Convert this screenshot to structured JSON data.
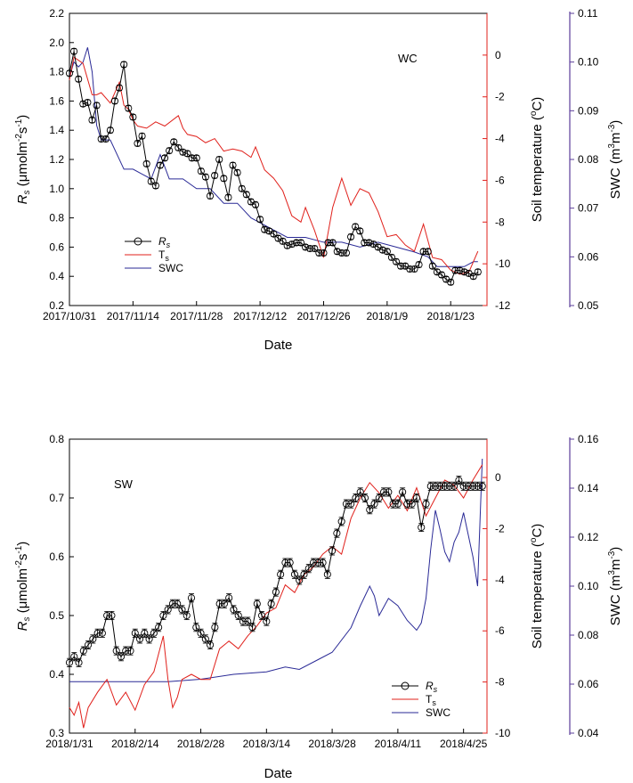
{
  "colors": {
    "rs": "#000000",
    "ts": "#e0201b",
    "swc": "#2a2a96",
    "right_axis": "#e0201b",
    "far_axis": "#5a3d99"
  },
  "chart_data": [
    {
      "type": "line",
      "panel_label": "WC",
      "xlabel": "Date",
      "ylabel_left": "Rs (μmolm-2s-1)",
      "ylabel_right": "Soil temperature (oC)",
      "ylabel_far": "SWC (m3m-3)",
      "ylim_left": [
        0.2,
        2.2
      ],
      "ylim_right": [
        -12,
        2
      ],
      "ylim_far": [
        0.05,
        0.11
      ],
      "x_start": "2017/10/31",
      "x_days": 92,
      "x_ticks": [
        "2017/10/31",
        "2017/11/14",
        "2017/11/28",
        "2017/12/12",
        "2017/12/26",
        "2018/1/9",
        "2018/1/23"
      ],
      "y_ticks_left": [
        "0.2",
        "0.4",
        "0.6",
        "0.8",
        "1.0",
        "1.2",
        "1.4",
        "1.6",
        "1.8",
        "2.0",
        "2.2"
      ],
      "y_ticks_right": [
        "-12",
        "-10",
        "-8",
        "-6",
        "-4",
        "-2",
        "0"
      ],
      "y_ticks_far": [
        "0.05",
        "0.06",
        "0.07",
        "0.08",
        "0.09",
        "0.10",
        "0.11"
      ],
      "legend": {
        "position": "bottom-left",
        "entries": [
          "Rs",
          "Ts",
          "SWC"
        ]
      },
      "series": [
        {
          "name": "Rs",
          "x": [
            "2017/10/31",
            "2017/11/1",
            "2017/11/2",
            "2017/11/3",
            "2017/11/4",
            "2017/11/5",
            "2017/11/6",
            "2017/11/7",
            "2017/11/8",
            "2017/11/9",
            "2017/11/10",
            "2017/11/11",
            "2017/11/12",
            "2017/11/13",
            "2017/11/14",
            "2017/11/15",
            "2017/11/16",
            "2017/11/17",
            "2017/11/18",
            "2017/11/19",
            "2017/11/20",
            "2017/11/21",
            "2017/11/22",
            "2017/11/23",
            "2017/11/24",
            "2017/11/25",
            "2017/11/26",
            "2017/11/27",
            "2017/11/28",
            "2017/11/29",
            "2017/11/30",
            "2017/12/1",
            "2017/12/2",
            "2017/12/3",
            "2017/12/4",
            "2017/12/5",
            "2017/12/6",
            "2017/12/7",
            "2017/12/8",
            "2017/12/9",
            "2017/12/10",
            "2017/12/11",
            "2017/12/12",
            "2017/12/13",
            "2017/12/14",
            "2017/12/15",
            "2017/12/16",
            "2017/12/17",
            "2017/12/18",
            "2017/12/19",
            "2017/12/20",
            "2017/12/21",
            "2017/12/22",
            "2017/12/23",
            "2017/12/24",
            "2017/12/25",
            "2017/12/26",
            "2017/12/27",
            "2017/12/28",
            "2017/12/29",
            "2017/12/30",
            "2017/12/31",
            "2018/1/1",
            "2018/1/2",
            "2018/1/3",
            "2018/1/4",
            "2018/1/5",
            "2018/1/6",
            "2018/1/7",
            "2018/1/8",
            "2018/1/9",
            "2018/1/10",
            "2018/1/11",
            "2018/1/12",
            "2018/1/13",
            "2018/1/14",
            "2018/1/15",
            "2018/1/16",
            "2018/1/17",
            "2018/1/18",
            "2018/1/19",
            "2018/1/20",
            "2018/1/21",
            "2018/1/22",
            "2018/1/23",
            "2018/1/24",
            "2018/1/25",
            "2018/1/26",
            "2018/1/27",
            "2018/1/28",
            "2018/1/29"
          ],
          "values": [
            1.79,
            1.94,
            1.75,
            1.58,
            1.59,
            1.47,
            1.57,
            1.34,
            1.34,
            1.4,
            1.6,
            1.69,
            1.85,
            1.55,
            1.49,
            1.31,
            1.36,
            1.17,
            1.05,
            1.02,
            1.16,
            1.21,
            1.26,
            1.32,
            1.28,
            1.25,
            1.24,
            1.21,
            1.21,
            1.12,
            1.08,
            0.95,
            1.09,
            1.2,
            1.07,
            0.94,
            1.16,
            1.11,
            1.0,
            0.96,
            0.91,
            0.89,
            0.79,
            0.72,
            0.71,
            0.69,
            0.66,
            0.64,
            0.61,
            0.62,
            0.63,
            0.63,
            0.6,
            0.59,
            0.59,
            0.56,
            0.56,
            0.63,
            0.63,
            0.57,
            0.56,
            0.56,
            0.67,
            0.74,
            0.71,
            0.63,
            0.63,
            0.62,
            0.6,
            0.58,
            0.57,
            0.53,
            0.5,
            0.47,
            0.47,
            0.45,
            0.45,
            0.48,
            0.57,
            0.57,
            0.47,
            0.43,
            0.41,
            0.38,
            0.36,
            0.44,
            0.44,
            0.43,
            0.42,
            0.4,
            0.43
          ]
        },
        {
          "name": "Ts",
          "x": [
            "2017/10/31",
            "2017/11/1",
            "2017/11/3",
            "2017/11/5",
            "2017/11/6",
            "2017/11/7",
            "2017/11/9",
            "2017/11/10",
            "2017/11/11",
            "2017/11/12",
            "2017/11/13",
            "2017/11/14",
            "2017/11/15",
            "2017/11/17",
            "2017/11/19",
            "2017/11/21",
            "2017/11/24",
            "2017/11/25",
            "2017/11/26",
            "2017/11/28",
            "2017/11/30",
            "2017/12/2",
            "2017/12/4",
            "2017/12/6",
            "2017/12/8",
            "2017/12/10",
            "2017/12/11",
            "2017/12/13",
            "2017/12/15",
            "2017/12/17",
            "2017/12/19",
            "2017/12/21",
            "2017/12/22",
            "2017/12/24",
            "2017/12/26",
            "2017/12/28",
            "2017/12/30",
            "2018/1/1",
            "2018/1/3",
            "2018/1/5",
            "2018/1/7",
            "2018/1/9",
            "2018/1/11",
            "2018/1/13",
            "2018/1/15",
            "2018/1/17",
            "2018/1/19",
            "2018/1/21",
            "2018/1/23",
            "2018/1/25",
            "2018/1/27",
            "2018/1/29"
          ],
          "values": [
            -1.2,
            -0.1,
            -0.4,
            -1.9,
            -1.9,
            -1.8,
            -2.3,
            -1.8,
            -1.3,
            -2.4,
            -2.6,
            -3.1,
            -3.4,
            -3.5,
            -3.2,
            -3.4,
            -2.9,
            -3.5,
            -3.8,
            -3.9,
            -4.2,
            -4.0,
            -4.6,
            -4.5,
            -4.6,
            -4.9,
            -4.4,
            -5.5,
            -5.9,
            -6.5,
            -7.7,
            -8.0,
            -7.3,
            -8.4,
            -9.7,
            -7.3,
            -5.9,
            -7.2,
            -6.4,
            -6.6,
            -7.5,
            -8.7,
            -8.6,
            -9.1,
            -9.4,
            -8.1,
            -9.7,
            -9.8,
            -10.3,
            -10.5,
            -10.4,
            -9.4
          ]
        },
        {
          "name": "SWC",
          "x": [
            "2017/10/31",
            "2017/11/1",
            "2017/11/2",
            "2017/11/3",
            "2017/11/4",
            "2017/11/5",
            "2017/11/6",
            "2017/11/7",
            "2017/11/9",
            "2017/11/12",
            "2017/11/14",
            "2017/11/16",
            "2017/11/18",
            "2017/11/20",
            "2017/11/22",
            "2017/11/25",
            "2017/11/28",
            "2017/12/1",
            "2017/12/4",
            "2017/12/7",
            "2017/12/10",
            "2017/12/14",
            "2017/12/18",
            "2017/12/22",
            "2017/12/26",
            "2017/12/30",
            "2018/1/3",
            "2018/1/7",
            "2018/1/11",
            "2018/1/15",
            "2018/1/18",
            "2018/1/20",
            "2018/1/22",
            "2018/1/24",
            "2018/1/26",
            "2018/1/28",
            "2018/1/29"
          ],
          "values": [
            0.097,
            0.1,
            0.099,
            0.1,
            0.103,
            0.098,
            0.087,
            0.084,
            0.084,
            0.078,
            0.078,
            0.077,
            0.076,
            0.081,
            0.076,
            0.076,
            0.074,
            0.074,
            0.071,
            0.071,
            0.068,
            0.066,
            0.064,
            0.064,
            0.063,
            0.063,
            0.062,
            0.063,
            0.062,
            0.061,
            0.06,
            0.058,
            0.058,
            0.058,
            0.058,
            0.059,
            0.059
          ]
        }
      ]
    },
    {
      "type": "line",
      "panel_label": "SW",
      "xlabel": "Date",
      "ylabel_left": "Rs (μmolm-2s-1)",
      "ylabel_right": "Soil temperature (oC)",
      "ylabel_far": "SWC (m3m-3)",
      "ylim_left": [
        0.3,
        0.8
      ],
      "ylim_right": [
        -10,
        1.5
      ],
      "ylim_far": [
        0.04,
        0.16
      ],
      "x_start": "2018/1/31",
      "x_days": 89,
      "x_ticks": [
        "2018/1/31",
        "2018/2/14",
        "2018/2/28",
        "2018/3/14",
        "2018/3/28",
        "2018/4/11",
        "2018/4/25"
      ],
      "y_ticks_left": [
        "0.3",
        "0.4",
        "0.5",
        "0.6",
        "0.7",
        "0.8"
      ],
      "y_ticks_right": [
        "-10",
        "-8",
        "-6",
        "-4",
        "-2",
        "0"
      ],
      "y_ticks_far": [
        "0.04",
        "0.06",
        "0.08",
        "0.10",
        "0.12",
        "0.14",
        "0.16"
      ],
      "legend": {
        "position": "bottom-right",
        "entries": [
          "Rs",
          "Ts",
          "SWC"
        ]
      },
      "series": [
        {
          "name": "Rs",
          "x": [
            "2018/1/31",
            "2018/2/1",
            "2018/2/2",
            "2018/2/3",
            "2018/2/4",
            "2018/2/5",
            "2018/2/6",
            "2018/2/7",
            "2018/2/8",
            "2018/2/9",
            "2018/2/10",
            "2018/2/11",
            "2018/2/12",
            "2018/2/13",
            "2018/2/14",
            "2018/2/15",
            "2018/2/16",
            "2018/2/17",
            "2018/2/18",
            "2018/2/19",
            "2018/2/20",
            "2018/2/21",
            "2018/2/22",
            "2018/2/23",
            "2018/2/24",
            "2018/2/25",
            "2018/2/26",
            "2018/2/27",
            "2018/2/28",
            "2018/3/1",
            "2018/3/2",
            "2018/3/3",
            "2018/3/4",
            "2018/3/5",
            "2018/3/6",
            "2018/3/7",
            "2018/3/8",
            "2018/3/9",
            "2018/3/10",
            "2018/3/11",
            "2018/3/12",
            "2018/3/13",
            "2018/3/14",
            "2018/3/15",
            "2018/3/16",
            "2018/3/17",
            "2018/3/18",
            "2018/3/19",
            "2018/3/20",
            "2018/3/21",
            "2018/3/22",
            "2018/3/23",
            "2018/3/24",
            "2018/3/25",
            "2018/3/26",
            "2018/3/27",
            "2018/3/28",
            "2018/3/29",
            "2018/3/30",
            "2018/3/31",
            "2018/4/1",
            "2018/4/2",
            "2018/4/3",
            "2018/4/4",
            "2018/4/5",
            "2018/4/6",
            "2018/4/7",
            "2018/4/8",
            "2018/4/9",
            "2018/4/10",
            "2018/4/11",
            "2018/4/12",
            "2018/4/13",
            "2018/4/14",
            "2018/4/15",
            "2018/4/16",
            "2018/4/17",
            "2018/4/18",
            "2018/4/19",
            "2018/4/20",
            "2018/4/21",
            "2018/4/22",
            "2018/4/23",
            "2018/4/24",
            "2018/4/25",
            "2018/4/26",
            "2018/4/27",
            "2018/4/28",
            "2018/4/29"
          ],
          "values": [
            0.42,
            0.43,
            0.42,
            0.44,
            0.45,
            0.46,
            0.47,
            0.47,
            0.5,
            0.5,
            0.44,
            0.43,
            0.44,
            0.44,
            0.47,
            0.46,
            0.47,
            0.46,
            0.47,
            0.48,
            0.5,
            0.51,
            0.52,
            0.52,
            0.51,
            0.5,
            0.53,
            0.48,
            0.47,
            0.46,
            0.45,
            0.48,
            0.52,
            0.52,
            0.53,
            0.51,
            0.5,
            0.49,
            0.49,
            0.48,
            0.52,
            0.5,
            0.49,
            0.52,
            0.54,
            0.57,
            0.59,
            0.59,
            0.57,
            0.56,
            0.57,
            0.58,
            0.59,
            0.59,
            0.59,
            0.57,
            0.61,
            0.64,
            0.66,
            0.69,
            0.69,
            0.7,
            0.71,
            0.7,
            0.68,
            0.69,
            0.7,
            0.71,
            0.71,
            0.69,
            0.69,
            0.71,
            0.69,
            0.69,
            0.7,
            0.65,
            0.69,
            0.72,
            0.72,
            0.72,
            0.72,
            0.72,
            0.72,
            0.73,
            0.72,
            0.72,
            0.72,
            0.72,
            0.72
          ]
        },
        {
          "name": "Ts",
          "x": [
            "2018/1/31",
            "2018/2/1",
            "2018/2/2",
            "2018/2/3",
            "2018/2/4",
            "2018/2/6",
            "2018/2/8",
            "2018/2/10",
            "2018/2/12",
            "2018/2/14",
            "2018/2/16",
            "2018/2/18",
            "2018/2/20",
            "2018/2/21",
            "2018/2/22",
            "2018/2/23",
            "2018/2/24",
            "2018/2/26",
            "2018/2/28",
            "2018/3/2",
            "2018/3/4",
            "2018/3/6",
            "2018/3/8",
            "2018/3/10",
            "2018/3/12",
            "2018/3/14",
            "2018/3/16",
            "2018/3/18",
            "2018/3/20",
            "2018/3/22",
            "2018/3/24",
            "2018/3/26",
            "2018/3/28",
            "2018/3/30",
            "2018/4/1",
            "2018/4/3",
            "2018/4/5",
            "2018/4/7",
            "2018/4/9",
            "2018/4/11",
            "2018/4/13",
            "2018/4/15",
            "2018/4/17",
            "2018/4/19",
            "2018/4/21",
            "2018/4/23",
            "2018/4/25",
            "2018/4/27",
            "2018/4/29"
          ],
          "values": [
            -9.0,
            -9.3,
            -8.8,
            -9.8,
            -9.0,
            -8.4,
            -7.9,
            -8.9,
            -8.4,
            -9.1,
            -8.1,
            -7.6,
            -6.2,
            -7.9,
            -9.0,
            -8.6,
            -7.9,
            -7.7,
            -7.9,
            -7.9,
            -6.7,
            -6.4,
            -6.7,
            -6.2,
            -5.8,
            -5.3,
            -5.1,
            -4.2,
            -4.5,
            -3.8,
            -3.5,
            -3.0,
            -2.7,
            -3.0,
            -1.6,
            -0.8,
            -0.2,
            -0.6,
            -1.2,
            -0.7,
            -1.3,
            -0.4,
            -1.5,
            -0.8,
            -0.1,
            -0.3,
            -0.8,
            -0.1,
            0.5
          ]
        },
        {
          "name": "SWC",
          "x": [
            "2018/1/31",
            "2018/2/7",
            "2018/2/14",
            "2018/2/21",
            "2018/2/28",
            "2018/3/7",
            "2018/3/14",
            "2018/3/18",
            "2018/3/21",
            "2018/3/25",
            "2018/3/28",
            "2018/4/1",
            "2018/4/3",
            "2018/4/5",
            "2018/4/6",
            "2018/4/7",
            "2018/4/9",
            "2018/4/11",
            "2018/4/13",
            "2018/4/15",
            "2018/4/16",
            "2018/4/17",
            "2018/4/18",
            "2018/4/19",
            "2018/4/20",
            "2018/4/21",
            "2018/4/22",
            "2018/4/23",
            "2018/4/24",
            "2018/4/25",
            "2018/4/27",
            "2018/4/28",
            "2018/4/29"
          ],
          "values": [
            0.061,
            0.061,
            0.061,
            0.061,
            0.062,
            0.064,
            0.065,
            0.067,
            0.066,
            0.07,
            0.073,
            0.083,
            0.092,
            0.1,
            0.096,
            0.088,
            0.095,
            0.092,
            0.086,
            0.082,
            0.085,
            0.095,
            0.115,
            0.131,
            0.123,
            0.114,
            0.11,
            0.118,
            0.122,
            0.13,
            0.112,
            0.1,
            0.152
          ]
        }
      ]
    }
  ]
}
